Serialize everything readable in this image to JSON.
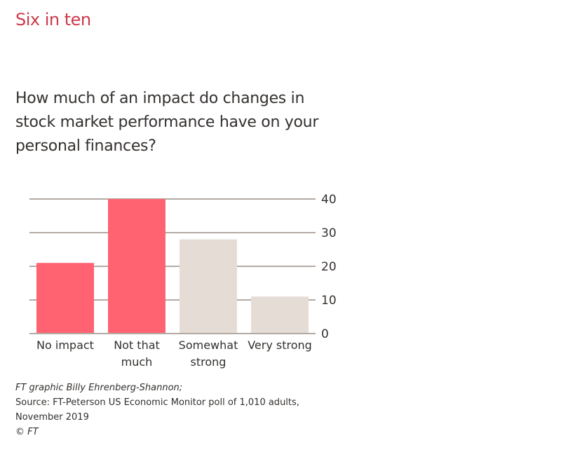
{
  "headline": "Six in ten",
  "subtitle": "How much of an impact do changes in stock market performance have on your personal finances?",
  "footer": {
    "graphic": "FT graphic Billy Ehrenberg-Shannon;",
    "source_line1": "Source: FT-Peterson US Economic Monitor poll of 1,010 adults,",
    "source_line2": "November 2019",
    "copyright": "© FT"
  },
  "colors": {
    "headline": "#cc3a4b",
    "highlight_bar": "#ff6372",
    "neutral_bar": "#e6dcd6",
    "grid": "#b3aaa4",
    "text": "#33302e"
  },
  "chart_data": {
    "type": "bar",
    "categories": [
      "No impact",
      "Not that much",
      "Somewhat strong",
      "Very strong"
    ],
    "category_lines": [
      [
        "No impact"
      ],
      [
        "Not that",
        "much"
      ],
      [
        "Somewhat",
        "strong"
      ],
      [
        "Very strong"
      ]
    ],
    "values": [
      21,
      40,
      28,
      11
    ],
    "highlighted": [
      true,
      true,
      false,
      false
    ],
    "ylim": [
      0,
      40
    ],
    "yticks": [
      0,
      10,
      20,
      30,
      40
    ],
    "ytick_labels": [
      "0",
      "10",
      "20",
      "30",
      "40"
    ],
    "yaxis_side": "right",
    "grid": true,
    "title": "Six in ten",
    "xlabel": "",
    "ylabel": ""
  }
}
